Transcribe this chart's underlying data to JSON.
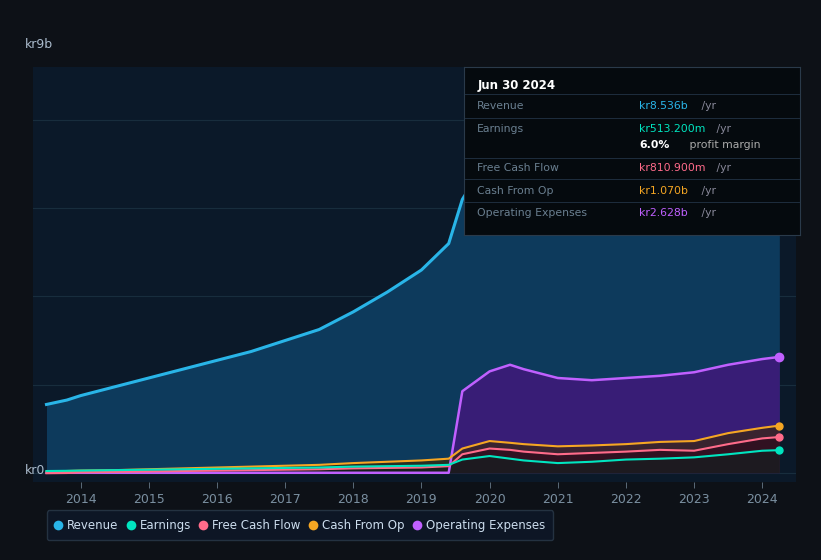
{
  "bg_color": "#0d1117",
  "plot_bg_color": "#0b1929",
  "grid_color": "#1a3040",
  "ylabel_text": "kr9b",
  "ylabel_zero": "kr0",
  "x_labels": [
    "2014",
    "2015",
    "2016",
    "2017",
    "2018",
    "2019",
    "2020",
    "2021",
    "2022",
    "2023",
    "2024"
  ],
  "years": [
    2013.5,
    2013.8,
    2014.0,
    2014.5,
    2015.0,
    2015.5,
    2016.0,
    2016.5,
    2017.0,
    2017.5,
    2018.0,
    2018.5,
    2019.0,
    2019.4,
    2019.6,
    2020.0,
    2020.3,
    2020.5,
    2021.0,
    2021.5,
    2022.0,
    2022.5,
    2023.0,
    2023.5,
    2024.0,
    2024.25
  ],
  "revenue": [
    1.55,
    1.65,
    1.75,
    1.95,
    2.15,
    2.35,
    2.55,
    2.75,
    3.0,
    3.25,
    3.65,
    4.1,
    4.6,
    5.2,
    6.2,
    7.2,
    7.6,
    7.3,
    6.0,
    5.5,
    5.6,
    5.9,
    6.6,
    7.5,
    8.4,
    8.536
  ],
  "earnings": [
    0.04,
    0.045,
    0.05,
    0.06,
    0.07,
    0.08,
    0.09,
    0.1,
    0.11,
    0.12,
    0.14,
    0.15,
    0.16,
    0.18,
    0.3,
    0.38,
    0.32,
    0.28,
    0.22,
    0.25,
    0.3,
    0.32,
    0.35,
    0.42,
    0.5,
    0.513
  ],
  "free_cash_flow": [
    -0.01,
    -0.005,
    0.01,
    0.02,
    0.03,
    0.04,
    0.05,
    0.06,
    0.07,
    0.08,
    0.1,
    0.11,
    0.12,
    0.15,
    0.42,
    0.55,
    0.52,
    0.48,
    0.42,
    0.45,
    0.48,
    0.52,
    0.5,
    0.65,
    0.78,
    0.811
  ],
  "cash_from_op": [
    0.03,
    0.04,
    0.05,
    0.06,
    0.08,
    0.1,
    0.12,
    0.14,
    0.16,
    0.18,
    0.22,
    0.25,
    0.28,
    0.32,
    0.55,
    0.72,
    0.68,
    0.65,
    0.6,
    0.62,
    0.65,
    0.7,
    0.72,
    0.9,
    1.02,
    1.07
  ],
  "operating_expenses": [
    0.0,
    0.0,
    0.0,
    0.0,
    0.0,
    0.0,
    0.0,
    0.0,
    0.0,
    0.0,
    0.0,
    0.0,
    0.0,
    0.0,
    1.85,
    2.3,
    2.45,
    2.35,
    2.15,
    2.1,
    2.15,
    2.2,
    2.28,
    2.45,
    2.58,
    2.628
  ],
  "revenue_color": "#29b5e8",
  "revenue_fill": "#0d3a5c",
  "earnings_color": "#00e5c0",
  "free_cash_flow_color": "#ff6b8a",
  "cash_from_op_color": "#f5a623",
  "operating_expenses_color": "#c060ff",
  "operating_expenses_fill": "#3d1a7a",
  "legend_labels": [
    "Revenue",
    "Earnings",
    "Free Cash Flow",
    "Cash From Op",
    "Operating Expenses"
  ],
  "info_box": {
    "title": "Jun 30 2024",
    "rows": [
      {
        "label": "Revenue",
        "value": "kr8.536b",
        "suffix": " /yr",
        "value_color": "#29b5e8"
      },
      {
        "label": "Earnings",
        "value": "kr513.200m",
        "suffix": " /yr",
        "value_color": "#00e5c0"
      },
      {
        "label": "",
        "bold": "6.0%",
        "rest": " profit margin"
      },
      {
        "label": "Free Cash Flow",
        "value": "kr810.900m",
        "suffix": " /yr",
        "value_color": "#ff6b8a"
      },
      {
        "label": "Cash From Op",
        "value": "kr1.070b",
        "suffix": " /yr",
        "value_color": "#f5a623"
      },
      {
        "label": "Operating Expenses",
        "value": "kr2.628b",
        "suffix": " /yr",
        "value_color": "#c060ff"
      }
    ]
  }
}
